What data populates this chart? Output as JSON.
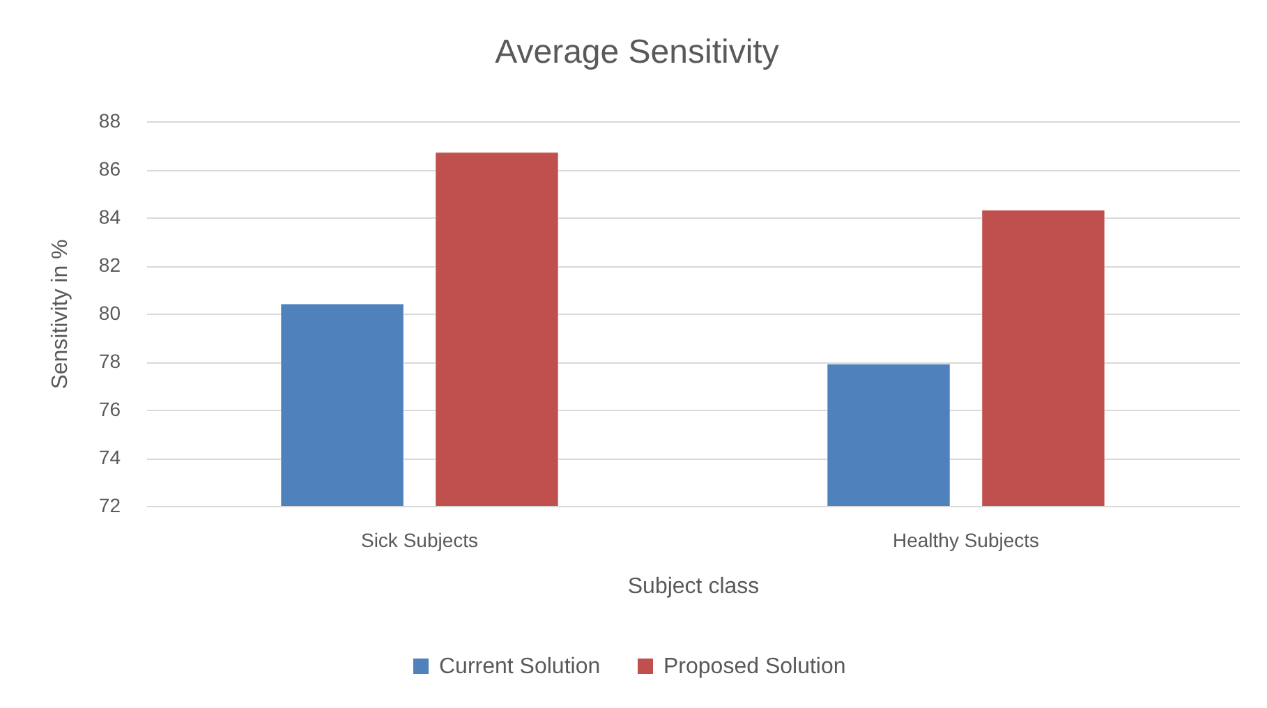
{
  "chart_data": {
    "type": "bar",
    "title": "Average Sensitivity",
    "xlabel": "Subject class",
    "ylabel": "Sensitivity in %",
    "categories": [
      "Sick Subjects",
      "Healthy Subjects"
    ],
    "series": [
      {
        "name": "Current Solution",
        "color": "#4f81bd",
        "values": [
          80.4,
          77.9
        ]
      },
      {
        "name": "Proposed Solution",
        "color": "#c0504d",
        "values": [
          86.7,
          84.3
        ]
      }
    ],
    "ylim": [
      72,
      88
    ],
    "yticks": [
      72,
      74,
      76,
      78,
      80,
      82,
      84,
      86,
      88
    ],
    "grid": "y",
    "legend": "bottom"
  }
}
